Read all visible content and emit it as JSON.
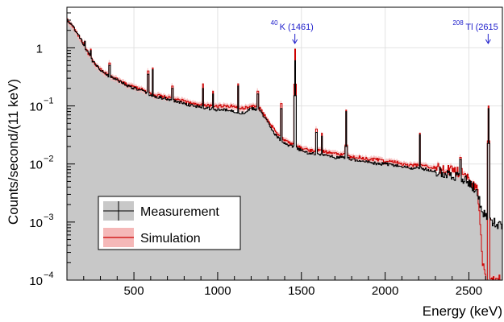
{
  "chart_data": {
    "type": "area",
    "xlabel": "Energy (keV)",
    "ylabel": "Counts/second/(11 keV)",
    "xlim": [
      100,
      2700
    ],
    "ylim": [
      0.0001,
      5
    ],
    "yscale": "log",
    "grid": true,
    "x_ticks": [
      500,
      1000,
      1500,
      2000,
      2500
    ],
    "x_tick_labels": [
      "500",
      "1000",
      "1500",
      "2000",
      "2500"
    ],
    "y_ticks": [
      0.0001,
      0.001,
      0.01,
      0.1,
      1
    ],
    "y_tick_labels": [
      {
        "base": "10",
        "exp": "−4"
      },
      {
        "base": "10",
        "exp": "−3"
      },
      {
        "base": "10",
        "exp": "−2"
      },
      {
        "base": "10",
        "exp": "−1"
      },
      {
        "base": "1",
        "exp": ""
      }
    ],
    "legend_position": "bottom-left",
    "series": [
      {
        "name": "Measurement",
        "style": "grey-filled-histogram-with-black-errorbars",
        "color": "#000000",
        "fill": "#c8c8c8",
        "x": [
          100,
          150,
          200,
          250,
          300,
          350,
          400,
          450,
          500,
          550,
          600,
          650,
          700,
          750,
          800,
          850,
          900,
          950,
          1000,
          1050,
          1100,
          1150,
          1200,
          1250,
          1300,
          1350,
          1400,
          1440,
          1500,
          1550,
          1600,
          1650,
          1700,
          1750,
          1800,
          1850,
          1900,
          1950,
          2000,
          2050,
          2100,
          2150,
          2200,
          2250,
          2300,
          2350,
          2400,
          2450,
          2500,
          2550,
          2580,
          2600,
          2650,
          2700
        ],
        "y": [
          3.0,
          2.0,
          1.1,
          0.6,
          0.42,
          0.32,
          0.28,
          0.23,
          0.2,
          0.18,
          0.15,
          0.14,
          0.13,
          0.12,
          0.11,
          0.1,
          0.095,
          0.09,
          0.085,
          0.085,
          0.08,
          0.075,
          0.09,
          0.085,
          0.05,
          0.03,
          0.022,
          0.02,
          0.017,
          0.015,
          0.015,
          0.014,
          0.013,
          0.013,
          0.012,
          0.011,
          0.011,
          0.01,
          0.01,
          0.0095,
          0.009,
          0.0085,
          0.0085,
          0.008,
          0.0075,
          0.007,
          0.0065,
          0.006,
          0.005,
          0.003,
          0.0015,
          0.0012,
          0.001,
          0.0008
        ]
      },
      {
        "name": "Simulation",
        "style": "red-line-with-pink-band",
        "color": "#cc0000",
        "fill": "#f5b8b8",
        "x": [
          100,
          150,
          200,
          250,
          300,
          350,
          400,
          450,
          500,
          550,
          600,
          650,
          700,
          750,
          800,
          850,
          900,
          950,
          1000,
          1050,
          1100,
          1150,
          1200,
          1250,
          1300,
          1350,
          1400,
          1440,
          1500,
          1550,
          1600,
          1650,
          1700,
          1750,
          1800,
          1850,
          1900,
          1950,
          2000,
          2050,
          2100,
          2150,
          2200,
          2250,
          2300,
          2350,
          2400,
          2450,
          2500,
          2550,
          2580,
          2600,
          2650,
          2700
        ],
        "y": [
          3.0,
          2.0,
          1.1,
          0.6,
          0.42,
          0.33,
          0.29,
          0.24,
          0.21,
          0.19,
          0.16,
          0.15,
          0.14,
          0.13,
          0.12,
          0.11,
          0.105,
          0.1,
          0.1,
          0.1,
          0.1,
          0.09,
          0.1,
          0.09,
          0.055,
          0.034,
          0.025,
          0.022,
          0.019,
          0.017,
          0.017,
          0.016,
          0.015,
          0.015,
          0.013,
          0.013,
          0.012,
          0.012,
          0.011,
          0.011,
          0.01,
          0.0095,
          0.0095,
          0.009,
          0.0085,
          0.008,
          0.0075,
          0.007,
          0.006,
          0.0035,
          0.0002,
          0.0001,
          0.0001,
          0.0001
        ]
      }
    ],
    "peaks": [
      {
        "x": 205,
        "y_meas": 1.3,
        "y_sim": 1.3
      },
      {
        "x": 240,
        "y_meas": 0.9,
        "y_sim": 0.95
      },
      {
        "x": 352,
        "y_meas": 0.5,
        "y_sim": 0.55
      },
      {
        "x": 583,
        "y_meas": 0.35,
        "y_sim": 0.4
      },
      {
        "x": 609,
        "y_meas": 0.42,
        "y_sim": 0.45
      },
      {
        "x": 727,
        "y_meas": 0.2,
        "y_sim": 0.22
      },
      {
        "x": 911,
        "y_meas": 0.2,
        "y_sim": 0.24
      },
      {
        "x": 969,
        "y_meas": 0.16,
        "y_sim": 0.18
      },
      {
        "x": 1120,
        "y_meas": 0.22,
        "y_sim": 0.24
      },
      {
        "x": 1238,
        "y_meas": 0.16,
        "y_sim": 0.18
      },
      {
        "x": 1378,
        "y_meas": 0.09,
        "y_sim": 0.11
      },
      {
        "x": 1461,
        "y_meas": 0.6,
        "y_sim": 0.95
      },
      {
        "x": 1588,
        "y_meas": 0.035,
        "y_sim": 0.04
      },
      {
        "x": 1620,
        "y_meas": 0.03,
        "y_sim": 0.034
      },
      {
        "x": 1764,
        "y_meas": 0.08,
        "y_sim": 0.085
      },
      {
        "x": 2204,
        "y_meas": 0.032,
        "y_sim": 0.034
      },
      {
        "x": 2448,
        "y_meas": 0.012,
        "y_sim": 0.013
      },
      {
        "x": 2615,
        "y_meas": 0.09,
        "y_sim": 0.1
      }
    ],
    "annotations": [
      {
        "sup": "40",
        "label": "K (1461)",
        "x": 1461
      },
      {
        "sup": "208",
        "label": "Tl (2615",
        "x": 2615
      }
    ]
  }
}
